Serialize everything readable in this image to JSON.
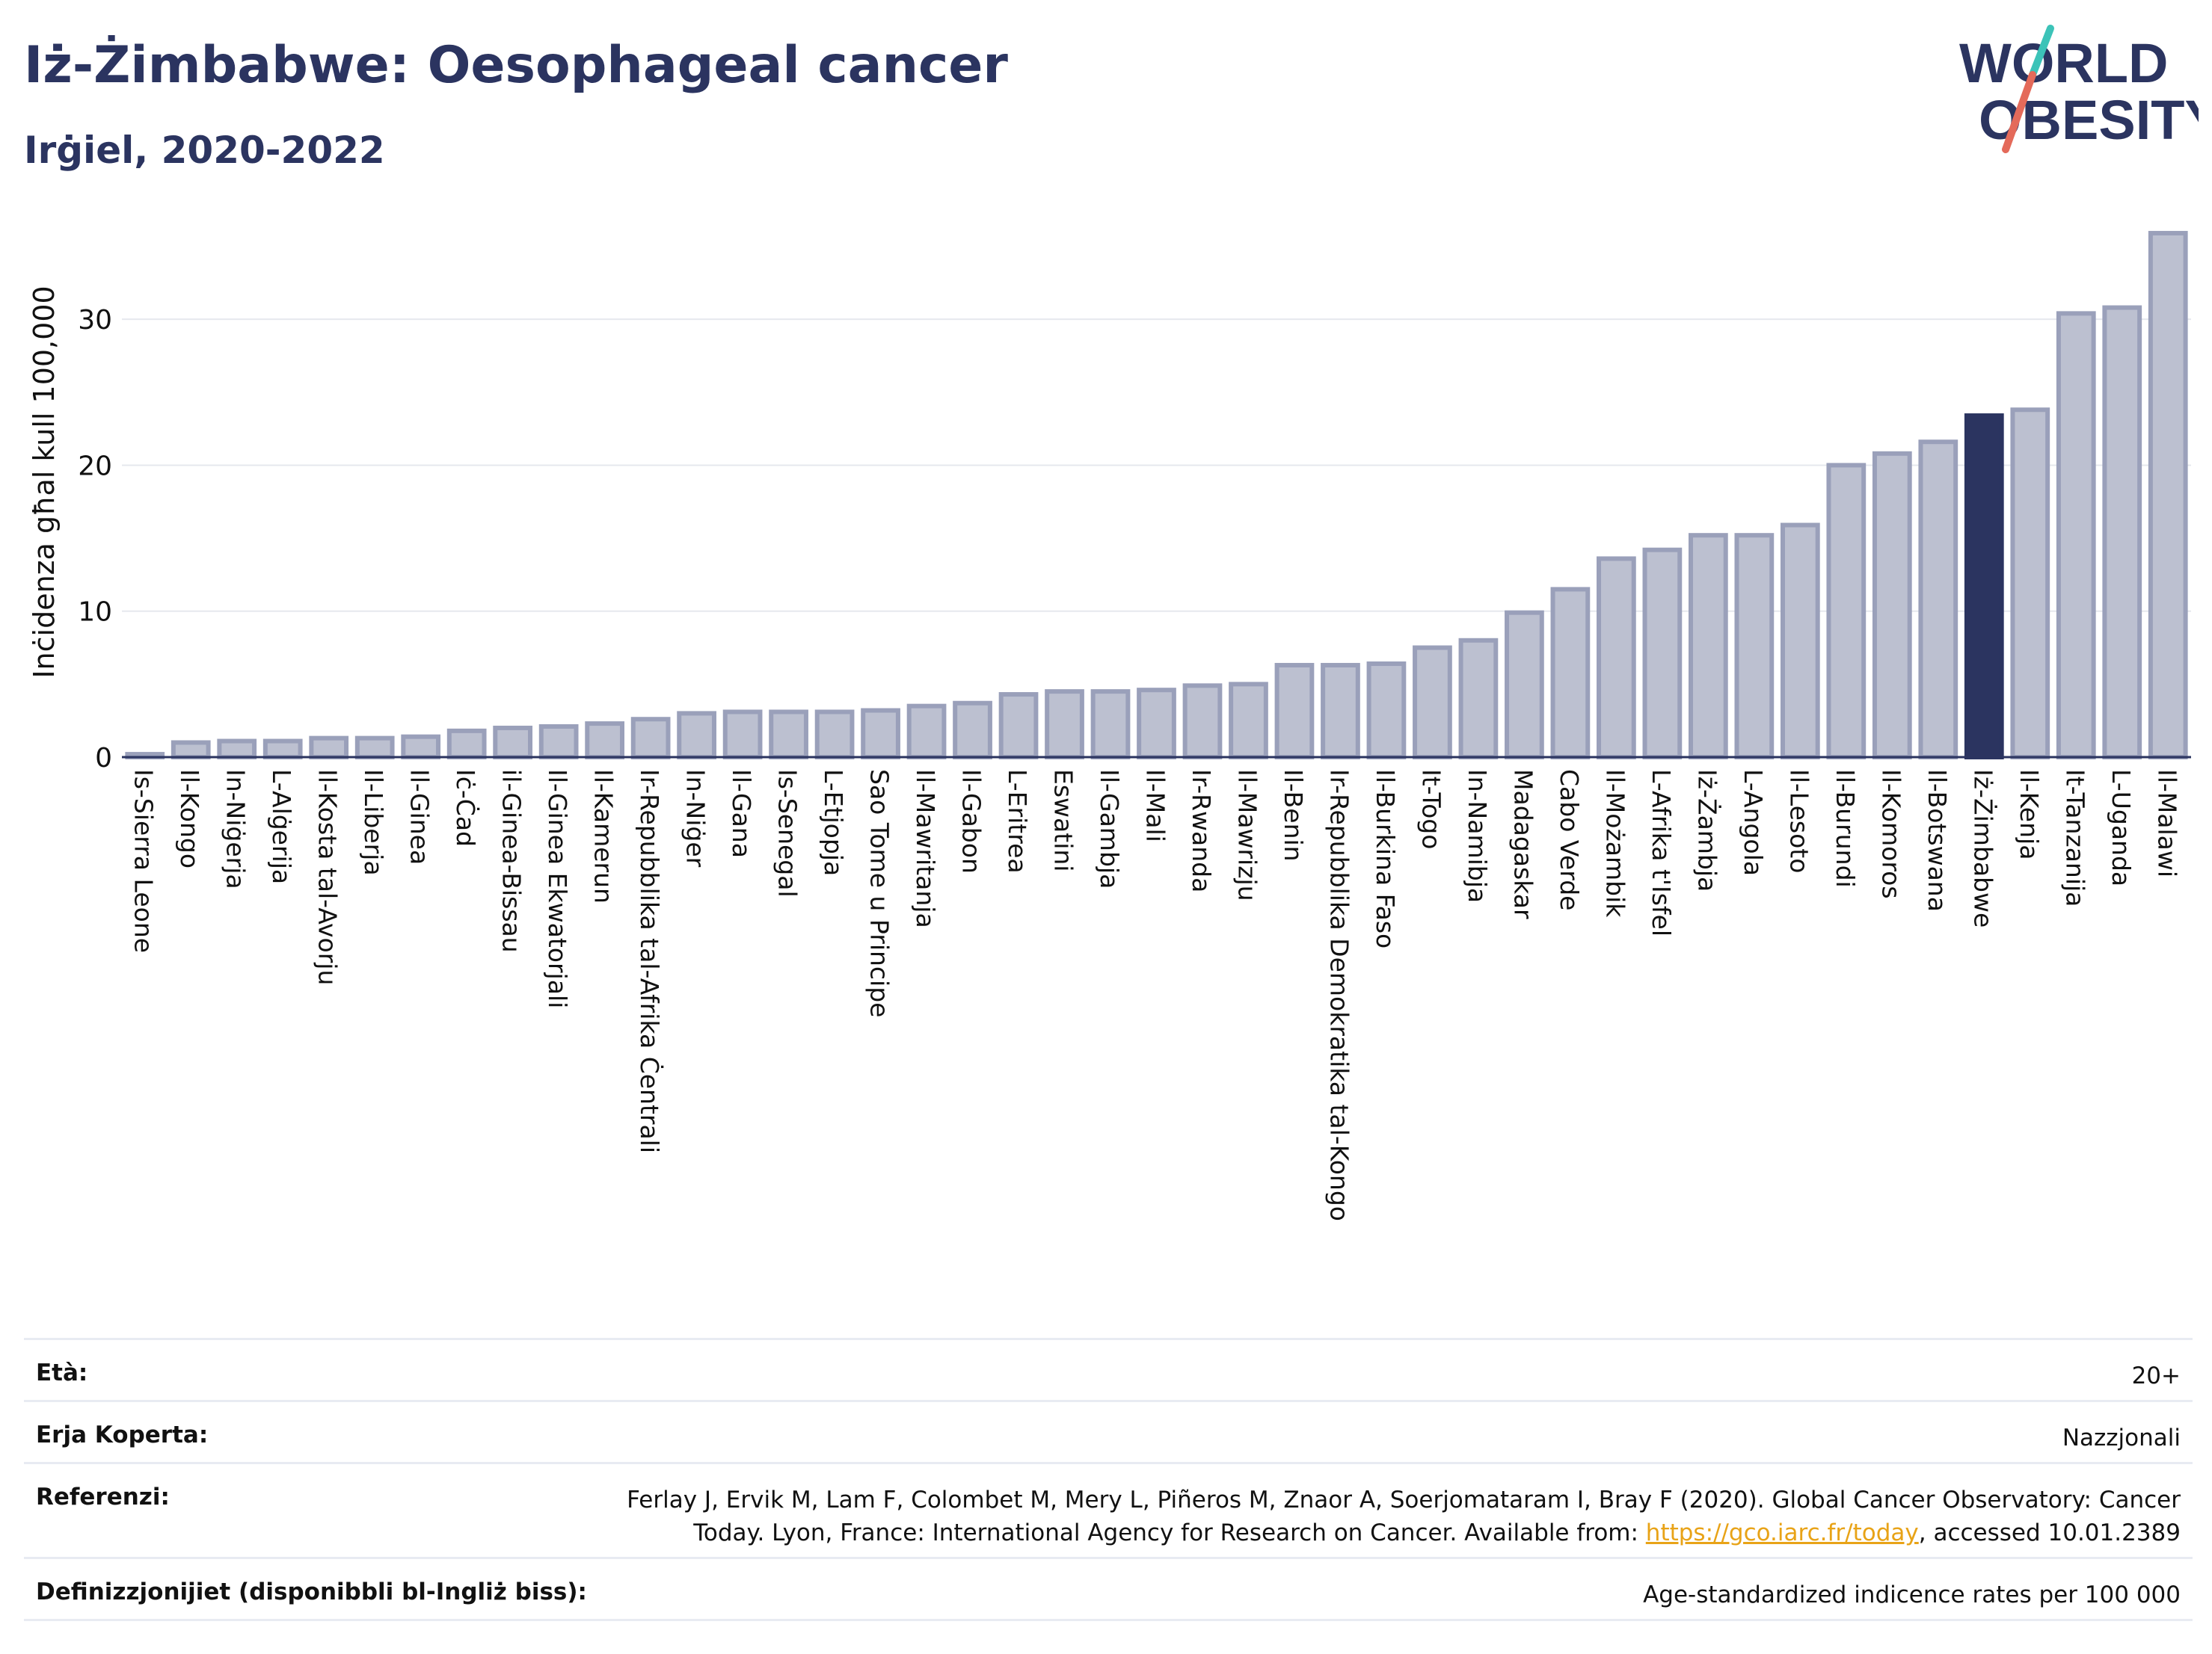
{
  "header": {
    "title": "Iż-Żimbabwe: Oesophageal cancer",
    "subtitle": "Irġiel, 2020-2022"
  },
  "logo": {
    "line1": "WORLD",
    "line2": "OBESITY",
    "text_color": "#2b3460",
    "slash_colors": [
      "#3cc3b8",
      "#e46a5a"
    ]
  },
  "chart_data": {
    "type": "bar",
    "ylabel": "Inċidenza għal kull 100,000",
    "xlabel": "",
    "ylim": [
      0,
      36
    ],
    "yticks": [
      0,
      10,
      20,
      30
    ],
    "grid": true,
    "highlight": "Iż-Żimbabwe",
    "colors": {
      "bar": "#bcc0d0",
      "bar_edge": "#9aa0ba",
      "highlight": "#2b3460"
    },
    "categories": [
      "Is-Sierra Leone",
      "Il-Kongo",
      "In-Niġerja",
      "L-Alġerija",
      "Il-Kosta tal-Avorju",
      "Il-Liberja",
      "Il-Ginea",
      "Iċ-Ċad",
      "il-Ginea-Bissau",
      "Il-Ginea Ekwatorjali",
      "Il-Kamerun",
      "Ir-Repubblika tal-Afrika Ċentrali",
      "In-Niġer",
      "Il-Gana",
      "Is-Senegal",
      "L-Etjopja",
      "Sao Tome u Principe",
      "Il-Mawritanja",
      "Il-Gabon",
      "L-Eritrea",
      "Eswatini",
      "Il-Gambja",
      "Il-Mali",
      "Ir-Rwanda",
      "Il-Mawrizju",
      "Il-Benin",
      "Ir-Repubblika Demokratika tal-Kongo",
      "Il-Burkina Faso",
      "It-Togo",
      "In-Namibja",
      "Madagaskar",
      "Cabo Verde",
      "Il-Możambik",
      "L-Afrika t'Isfel",
      "Iż-Żambja",
      "L-Angola",
      "Il-Lesoto",
      "Il-Burundi",
      "Il-Komoros",
      "Il-Botswana",
      "Iż-Żimbabwe",
      "Il-Kenja",
      "It-Tanzanija",
      "L-Uganda",
      "Il-Malawi"
    ],
    "values": [
      0.2,
      1.0,
      1.1,
      1.1,
      1.3,
      1.3,
      1.4,
      1.8,
      2.0,
      2.1,
      2.3,
      2.6,
      3.0,
      3.1,
      3.1,
      3.1,
      3.2,
      3.5,
      3.7,
      4.3,
      4.5,
      4.5,
      4.6,
      4.9,
      5.0,
      6.3,
      6.3,
      6.4,
      7.5,
      8.0,
      9.9,
      11.5,
      13.6,
      14.2,
      15.2,
      15.2,
      15.9,
      20.0,
      20.8,
      21.6,
      23.4,
      23.8,
      30.4,
      30.8,
      35.9
    ]
  },
  "meta": {
    "age_label": "Età:",
    "age_value": "20+",
    "area_label": "Erja Koperta:",
    "area_value": "Nazzjonali",
    "ref_label": "Referenzi:",
    "ref_line1": "Ferlay J, Ervik M, Lam F, Colombet M, Mery L, Piñeros M, Znaor A, Soerjomataram I, Bray F (2020). Global Cancer Observatory: Cancer",
    "ref_line2_pre": "Today. Lyon, France: International Agency for Research on Cancer. Available from: ",
    "ref_link": "https://gco.iarc.fr/today",
    "ref_line2_post": ", accessed 10.01.2389",
    "def_label": "Definizzjonijiet (disponibbli bl-Ingliż biss):",
    "def_value": "Age-standardized indicence rates per 100 000"
  }
}
